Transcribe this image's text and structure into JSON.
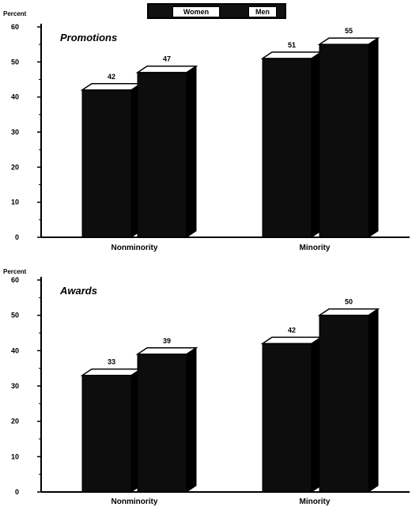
{
  "legend": {
    "women": "Women",
    "men": "Men"
  },
  "chart_data": [
    {
      "type": "bar",
      "title": "Promotions",
      "ylabel": "Percent",
      "ylim": [
        0,
        60
      ],
      "yticks": [
        0,
        10,
        20,
        30,
        40,
        50,
        60
      ],
      "categories": [
        "Nonminority",
        "Minority"
      ],
      "series": [
        {
          "name": "Women",
          "values": [
            42,
            51
          ]
        },
        {
          "name": "Men",
          "values": [
            47,
            55
          ]
        }
      ],
      "data_labels": true,
      "legend_position": "top-center",
      "style": "3d"
    },
    {
      "type": "bar",
      "title": "Awards",
      "ylabel": "Percent",
      "ylim": [
        0,
        60
      ],
      "yticks": [
        0,
        10,
        20,
        30,
        40,
        50,
        60
      ],
      "categories": [
        "Nonminority",
        "Minority"
      ],
      "series": [
        {
          "name": "Women",
          "values": [
            33,
            42
          ]
        },
        {
          "name": "Men",
          "values": [
            39,
            50
          ]
        }
      ],
      "data_labels": true,
      "legend_position": "top-center",
      "style": "3d"
    }
  ]
}
